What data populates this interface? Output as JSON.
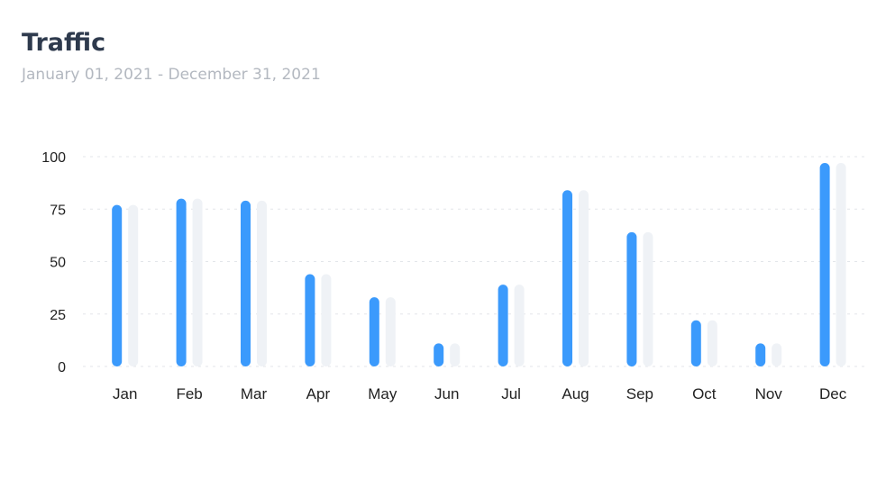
{
  "header": {
    "title": "Traffic",
    "subtitle": "January 01, 2021 - December 31, 2021"
  },
  "colors": {
    "primary_bar": "#3b9afc",
    "secondary_bar": "#eff2f6",
    "gridline": "#e3e6ea"
  },
  "chart_data": {
    "type": "bar",
    "title": "",
    "xlabel": "",
    "ylabel": "",
    "ylim": [
      0,
      100
    ],
    "yticks": [
      0,
      25,
      50,
      75,
      100
    ],
    "categories": [
      "Jan",
      "Feb",
      "Mar",
      "Apr",
      "May",
      "Jun",
      "Jul",
      "Aug",
      "Sep",
      "Oct",
      "Nov",
      "Dec"
    ],
    "series": [
      {
        "values": [
          77,
          80,
          79,
          44,
          33,
          11,
          39,
          84,
          64,
          22,
          11,
          97
        ],
        "color": "#3b9afc"
      },
      {
        "values": [
          77,
          80,
          79,
          44,
          33,
          11,
          39,
          84,
          64,
          22,
          11,
          97
        ],
        "color": "#eff2f6"
      }
    ],
    "grid": true,
    "legend": "none"
  }
}
